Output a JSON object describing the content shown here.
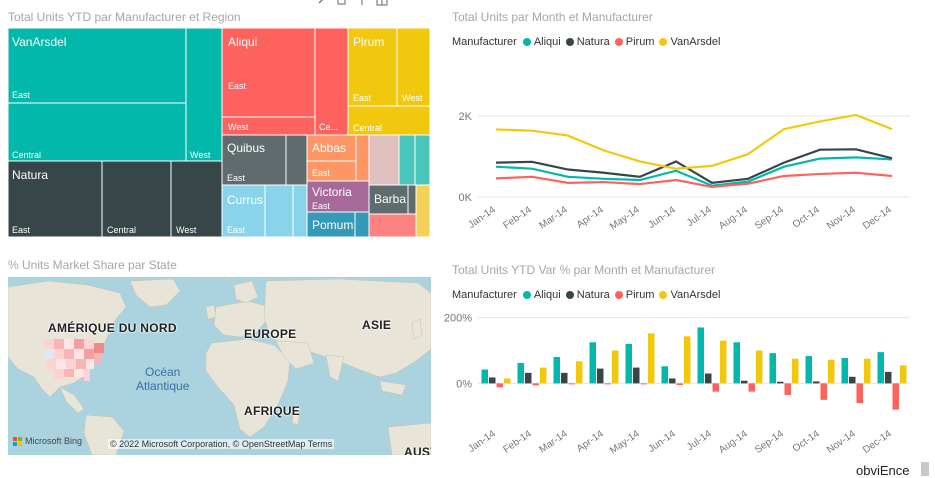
{
  "colors": {
    "aliqui": "#01b8aa",
    "natura": "#374649",
    "pirum": "#fd625e",
    "vanarsdel": "#f2c80f",
    "title_gray": "#a6a6a6"
  },
  "treemap": {
    "title": "Total Units YTD par Manufacturer et Region",
    "labels": {
      "vanarsdel": "VanArsdel",
      "vanarsdel_east": "East",
      "vanarsdel_central": "Central",
      "vanarsdel_west": "West",
      "natura": "Natura",
      "natura_east": "East",
      "natura_central": "Central",
      "natura_west": "West",
      "aliqui": "Aliqui",
      "aliqui_east": "East",
      "aliqui_west": "West",
      "aliqui_central": "Ce...",
      "pirum": "Pirum",
      "pirum_east": "East",
      "pirum_west": "West",
      "pirum_central": "Central",
      "quibus": "Quibus",
      "quibus_east": "East",
      "abbas": "Abbas",
      "abbas_east": "East",
      "currus": "Currus",
      "currus_east": "East",
      "victoria": "Victoria",
      "victoria_east": "East",
      "pomum": "Pomum",
      "barba": "Barba"
    }
  },
  "line_chart": {
    "title": "Total Units par Month et Manufacturer",
    "legend_title": "Manufacturer",
    "legend": [
      "Aliqui",
      "Natura",
      "Pirum",
      "VanArsdel"
    ]
  },
  "bar_chart": {
    "title": "Total Units YTD Var % par Month et Manufacturer",
    "legend_title": "Manufacturer",
    "legend": [
      "Aliqui",
      "Natura",
      "Pirum",
      "VanArsdel"
    ]
  },
  "map": {
    "title": "% Units Market Share par State",
    "labels": {
      "north_america": "AMÉRIQUE DU NORD",
      "europe": "EUROPE",
      "asia": "ASIE",
      "africa": "AFRIQUE",
      "ocean_line1": "Océan",
      "ocean_line2": "Atlantique",
      "australia": "AUST"
    },
    "bing": "Microsoft Bing",
    "attribution": "© 2022 Microsoft Corporation, © OpenStreetMap   Terms"
  },
  "footer_text": "obviEnce",
  "chart_data": [
    {
      "type": "line",
      "title": "Total Units par Month et Manufacturer",
      "x": [
        "Jan-14",
        "Feb-14",
        "Mar-14",
        "Apr-14",
        "May-14",
        "Jun-14",
        "Jul-14",
        "Aug-14",
        "Sep-14",
        "Oct-14",
        "Nov-14",
        "Dec-14"
      ],
      "yticks": [
        "0K",
        "2K"
      ],
      "ylim": [
        0,
        2400
      ],
      "series": [
        {
          "name": "Aliqui",
          "values": [
            750,
            700,
            500,
            450,
            420,
            650,
            280,
            380,
            750,
            950,
            980,
            930
          ]
        },
        {
          "name": "Natura",
          "values": [
            850,
            870,
            680,
            600,
            500,
            880,
            350,
            450,
            850,
            1170,
            1180,
            960
          ]
        },
        {
          "name": "Pirum",
          "values": [
            460,
            500,
            350,
            370,
            320,
            420,
            250,
            330,
            520,
            570,
            600,
            520
          ]
        },
        {
          "name": "VanArsdel",
          "values": [
            1670,
            1640,
            1520,
            1150,
            880,
            700,
            770,
            1060,
            1680,
            1870,
            2030,
            1680
          ]
        }
      ]
    },
    {
      "type": "bar",
      "title": "Total Units YTD Var % par Month et Manufacturer",
      "categories": [
        "Jan-14",
        "Feb-14",
        "Mar-14",
        "Apr-14",
        "May-14",
        "Jun-14",
        "Jul-14",
        "Aug-14",
        "Sep-14",
        "Oct-14",
        "Nov-14",
        "Dec-14"
      ],
      "yticks": [
        "0%",
        "200%"
      ],
      "ylim": [
        -90,
        220
      ],
      "series": [
        {
          "name": "Aliqui",
          "values": [
            42,
            62,
            80,
            125,
            120,
            52,
            170,
            125,
            92,
            83,
            77,
            95
          ]
        },
        {
          "name": "Natura",
          "values": [
            18,
            32,
            32,
            45,
            48,
            15,
            30,
            8,
            5,
            6,
            20,
            35
          ]
        },
        {
          "name": "Pirum",
          "values": [
            -12,
            -6,
            -3,
            -2,
            -3,
            -5,
            -25,
            -25,
            -35,
            -50,
            -60,
            -80
          ]
        },
        {
          "name": "VanArsdel",
          "values": [
            15,
            48,
            67,
            100,
            152,
            143,
            130,
            100,
            75,
            72,
            75,
            55
          ]
        }
      ]
    }
  ]
}
